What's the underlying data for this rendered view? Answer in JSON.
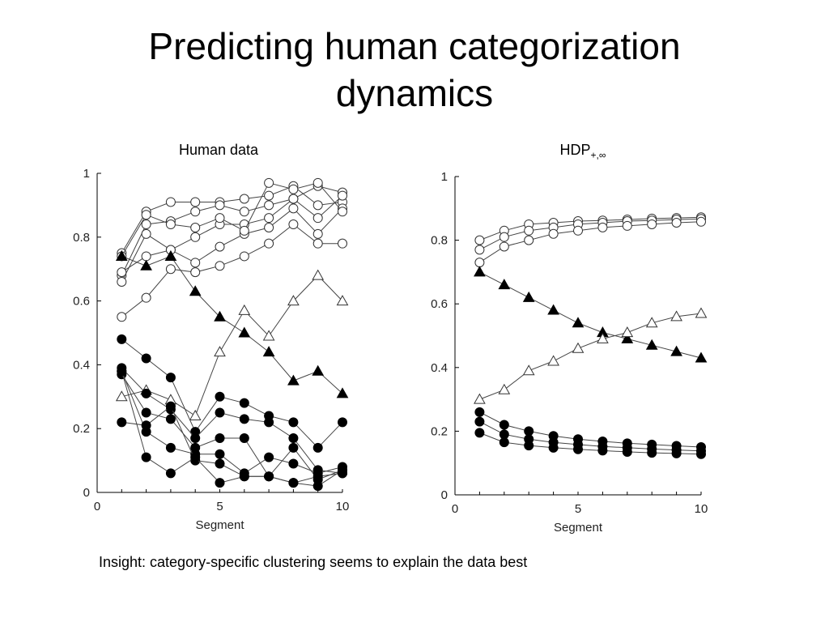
{
  "slide": {
    "title_line1": "Predicting human categorization",
    "title_line2": "dynamics",
    "insight": "Insight: category-specific clustering seems to explain the data best"
  },
  "panels": {
    "human_title": "Human data",
    "hdp_title_base": "HDP",
    "hdp_title_sub": "+,∞"
  },
  "chart_data": [
    {
      "type": "line",
      "title": "Human data",
      "xlabel": "Segment",
      "ylabel": "",
      "xlim": [
        0,
        10
      ],
      "ylim": [
        0,
        1
      ],
      "x": [
        1,
        2,
        3,
        4,
        5,
        6,
        7,
        8,
        9,
        10
      ],
      "xticks": [
        "0",
        "5",
        "10"
      ],
      "yticks": [
        "0",
        "0.2",
        "0.4",
        "0.6",
        "0.8",
        "1"
      ],
      "series": [
        {
          "name": "open-circle-1",
          "marker": "open-circle",
          "values": [
            0.75,
            0.88,
            0.91,
            0.91,
            0.91,
            0.92,
            0.93,
            0.96,
            0.9,
            0.91
          ]
        },
        {
          "name": "open-circle-2",
          "marker": "open-circle",
          "values": [
            0.68,
            0.84,
            0.85,
            0.88,
            0.9,
            0.88,
            0.9,
            0.92,
            0.96,
            0.94
          ]
        },
        {
          "name": "open-circle-3",
          "marker": "open-circle",
          "values": [
            0.66,
            0.81,
            0.76,
            0.8,
            0.84,
            0.84,
            0.86,
            0.92,
            0.86,
            0.93
          ]
        },
        {
          "name": "open-circle-4",
          "marker": "open-circle",
          "values": [
            0.69,
            0.74,
            0.76,
            0.72,
            0.77,
            0.81,
            0.83,
            0.89,
            0.81,
            0.89
          ]
        },
        {
          "name": "open-circle-5",
          "marker": "open-circle",
          "values": [
            0.55,
            0.61,
            0.7,
            0.69,
            0.71,
            0.74,
            0.78,
            0.84,
            0.78,
            0.78
          ]
        },
        {
          "name": "open-circle-6",
          "marker": "open-circle",
          "values": [
            0.74,
            0.87,
            0.84,
            0.83,
            0.86,
            0.82,
            0.97,
            0.95,
            0.97,
            0.88
          ]
        },
        {
          "name": "filled-triangle",
          "marker": "filled-triangle",
          "values": [
            0.74,
            0.71,
            0.74,
            0.63,
            0.55,
            0.5,
            0.44,
            0.35,
            0.38,
            0.31
          ]
        },
        {
          "name": "open-triangle",
          "marker": "open-triangle",
          "values": [
            0.3,
            0.32,
            0.29,
            0.24,
            0.44,
            0.57,
            0.49,
            0.6,
            0.68,
            0.6
          ]
        },
        {
          "name": "filled-circle-1",
          "marker": "filled-circle",
          "values": [
            0.48,
            0.42,
            0.36,
            0.19,
            0.3,
            0.28,
            0.24,
            0.22,
            0.14,
            0.22
          ]
        },
        {
          "name": "filled-circle-2",
          "marker": "filled-circle",
          "values": [
            0.39,
            0.31,
            0.26,
            0.17,
            0.25,
            0.23,
            0.22,
            0.17,
            0.07,
            0.06
          ]
        },
        {
          "name": "filled-circle-3",
          "marker": "filled-circle",
          "values": [
            0.37,
            0.25,
            0.23,
            0.14,
            0.17,
            0.17,
            0.05,
            0.14,
            0.04,
            0.07
          ]
        },
        {
          "name": "filled-circle-4",
          "marker": "filled-circle",
          "values": [
            0.38,
            0.19,
            0.14,
            0.12,
            0.12,
            0.06,
            0.11,
            0.09,
            0.06,
            0.08
          ]
        },
        {
          "name": "filled-circle-5",
          "marker": "filled-circle",
          "values": [
            0.22,
            0.21,
            0.27,
            0.1,
            0.09,
            0.05,
            0.05,
            0.03,
            0.02,
            0.07
          ]
        },
        {
          "name": "filled-circle-6",
          "marker": "filled-circle",
          "values": [
            0.38,
            0.11,
            0.06,
            0.11,
            0.03,
            0.05,
            0.05,
            0.03,
            0.05,
            0.06
          ]
        }
      ]
    },
    {
      "type": "line",
      "title": "HDP+,∞",
      "xlabel": "Segment",
      "ylabel": "",
      "xlim": [
        0,
        10
      ],
      "ylim": [
        0,
        1
      ],
      "x": [
        1,
        2,
        3,
        4,
        5,
        6,
        7,
        8,
        9,
        10
      ],
      "xticks": [
        "0",
        "5",
        "10"
      ],
      "yticks": [
        "0",
        "0.2",
        "0.4",
        "0.6",
        "0.8",
        "1"
      ],
      "series": [
        {
          "name": "open-circle-1",
          "marker": "open-circle",
          "values": [
            0.8,
            0.83,
            0.85,
            0.855,
            0.86,
            0.862,
            0.865,
            0.868,
            0.87,
            0.872
          ]
        },
        {
          "name": "open-circle-2",
          "marker": "open-circle",
          "values": [
            0.77,
            0.81,
            0.83,
            0.84,
            0.85,
            0.855,
            0.86,
            0.862,
            0.865,
            0.867
          ]
        },
        {
          "name": "open-circle-3",
          "marker": "open-circle",
          "values": [
            0.73,
            0.78,
            0.8,
            0.82,
            0.83,
            0.84,
            0.845,
            0.85,
            0.855,
            0.858
          ]
        },
        {
          "name": "filled-triangle",
          "marker": "filled-triangle",
          "values": [
            0.7,
            0.66,
            0.62,
            0.58,
            0.54,
            0.51,
            0.49,
            0.47,
            0.45,
            0.43
          ]
        },
        {
          "name": "open-triangle",
          "marker": "open-triangle",
          "values": [
            0.3,
            0.33,
            0.39,
            0.42,
            0.46,
            0.49,
            0.51,
            0.54,
            0.56,
            0.57
          ]
        },
        {
          "name": "filled-circle-1",
          "marker": "filled-circle",
          "values": [
            0.26,
            0.22,
            0.2,
            0.185,
            0.175,
            0.168,
            0.162,
            0.158,
            0.154,
            0.15
          ]
        },
        {
          "name": "filled-circle-2",
          "marker": "filled-circle",
          "values": [
            0.23,
            0.19,
            0.175,
            0.165,
            0.158,
            0.152,
            0.148,
            0.144,
            0.141,
            0.138
          ]
        },
        {
          "name": "filled-circle-3",
          "marker": "filled-circle",
          "values": [
            0.195,
            0.165,
            0.155,
            0.148,
            0.143,
            0.139,
            0.135,
            0.132,
            0.13,
            0.128
          ]
        }
      ]
    }
  ]
}
